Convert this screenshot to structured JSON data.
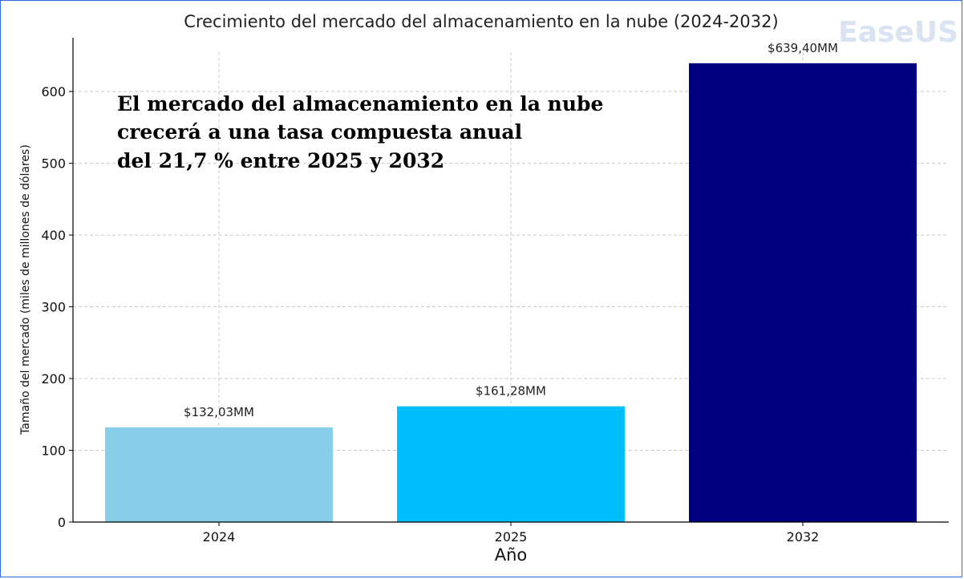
{
  "chart_data": {
    "type": "bar",
    "title": "Crecimiento del mercado del almacenamiento en la nube (2024-2032)",
    "xlabel": "Año",
    "ylabel": "Tamaño del mercado (miles de millones de dólares)",
    "categories": [
      "2024",
      "2025",
      "2032"
    ],
    "values": [
      132.03,
      161.28,
      639.4
    ],
    "data_labels": [
      "$132,03MM",
      "$161,28MM",
      "$639,40MM"
    ],
    "colors": [
      "#87ceeb",
      "#00bfff",
      "#000080"
    ],
    "ylim": [
      0,
      675
    ],
    "yticks": [
      0,
      100,
      200,
      300,
      400,
      500,
      600
    ],
    "grid": true,
    "annotation": [
      "El mercado del almacenamiento en la nube",
      "crecerá a una tasa compuesta anual",
      "del 21,7 % entre 2025 y 2032"
    ]
  },
  "watermark": "EaseUS"
}
